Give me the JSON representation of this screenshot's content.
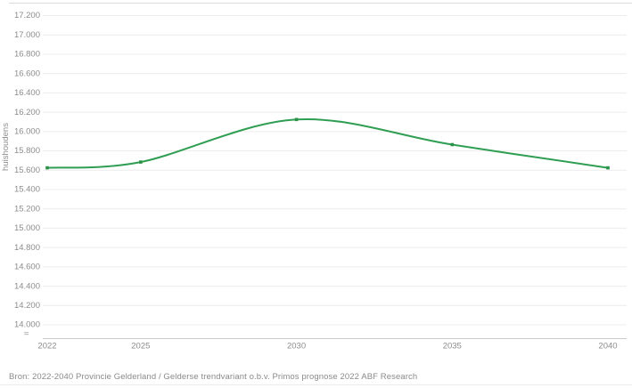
{
  "chart_data": {
    "type": "line",
    "title": "",
    "xlabel": "",
    "ylabel": "huishoudens",
    "x": [
      2022,
      2025,
      2030,
      2035,
      2040
    ],
    "series": [
      {
        "name": "huishoudens",
        "values": [
          15620,
          15680,
          16120,
          15860,
          15620
        ]
      }
    ],
    "ylim": [
      14000,
      17200
    ],
    "y_tick_step": 200,
    "y_tick_labels": [
      "17.200",
      "17.000",
      "16.800",
      "16.600",
      "16.400",
      "16.200",
      "16.000",
      "15.800",
      "15.600",
      "15.400",
      "15.200",
      "15.000",
      "14.800",
      "14.600",
      "14.400",
      "14.200",
      "14.000"
    ],
    "x_tick_labels": [
      "2022",
      "2025",
      "2030",
      "2035",
      "2040"
    ],
    "grid": true,
    "legend": "none",
    "smooth_spline": true,
    "marker": "square",
    "y_axis_break": true,
    "axis_break_symbol": "≈",
    "line_color": "#2f9e52",
    "marker_color": "#2b9149",
    "gridline_color": "#ececec",
    "axis_line_color": "#cccccc",
    "tick_label_color": "#8c8c8c"
  },
  "footer": {
    "source": "Bron: 2022-2040 Provincie Gelderland / Gelderse trendvariant o.b.v. Primos prognose 2022 ABF Research"
  }
}
